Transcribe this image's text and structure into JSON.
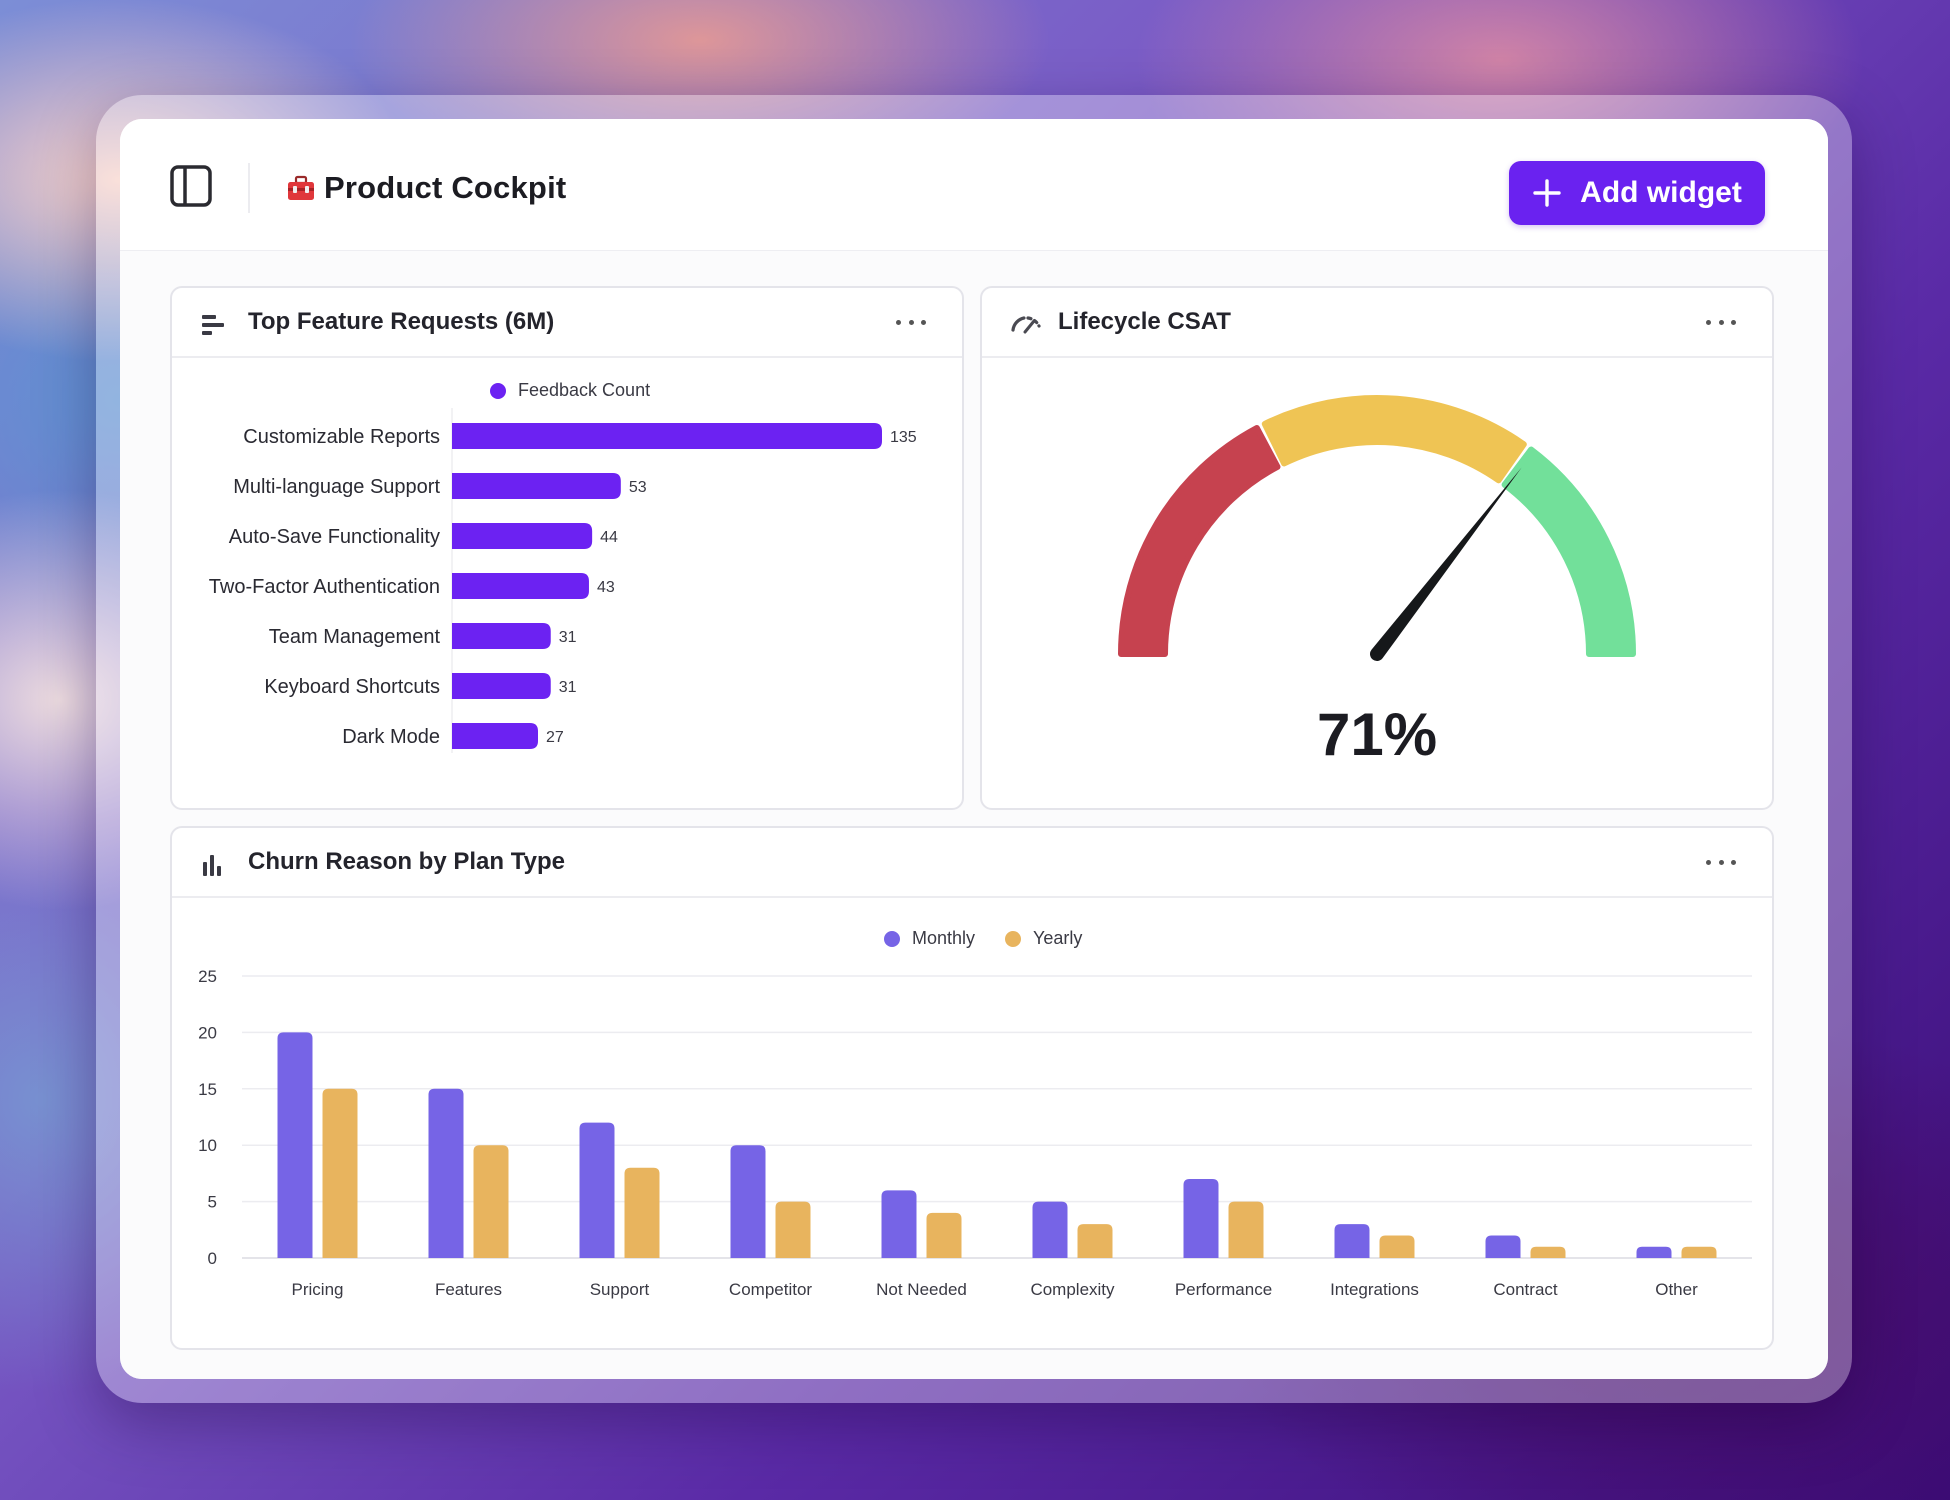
{
  "app": {
    "title": "Product Cockpit",
    "add_widget_label": "Add widget"
  },
  "colors": {
    "accent": "#6a22f0",
    "bar_purple": "#6c22f2",
    "monthly": "#7664e6",
    "yearly": "#e8b45e",
    "gauge_red": "#c6424f",
    "gauge_yellow": "#efc454",
    "gauge_green": "#72e09a"
  },
  "widgets": {
    "feature_requests": {
      "title": "Top Feature Requests (6M)",
      "icon": "horizontal-bars-icon",
      "legend": "Feedback Count"
    },
    "csat": {
      "title": "Lifecycle CSAT",
      "icon": "gauge-icon",
      "value_label": "71%"
    },
    "churn": {
      "title": "Churn Reason by Plan Type",
      "icon": "vertical-bars-icon",
      "legend_monthly": "Monthly",
      "legend_yearly": "Yearly"
    }
  },
  "chart_data": [
    {
      "type": "bar",
      "orientation": "horizontal",
      "title": "Top Feature Requests (6M)",
      "legend": [
        "Feedback Count"
      ],
      "categories": [
        "Customizable Reports",
        "Multi-language Support",
        "Auto-Save Functionality",
        "Two-Factor Authentication",
        "Team Management",
        "Keyboard Shortcuts",
        "Dark Mode"
      ],
      "series": [
        {
          "name": "Feedback Count",
          "values": [
            135,
            53,
            44,
            43,
            31,
            31,
            27
          ]
        }
      ],
      "data_labels": true,
      "grid": false
    },
    {
      "type": "gauge",
      "title": "Lifecycle CSAT",
      "value": 71,
      "range": [
        0,
        100
      ],
      "bands": [
        {
          "color": "red",
          "from": 0,
          "to": 35
        },
        {
          "color": "yellow",
          "from": 35,
          "to": 70
        },
        {
          "color": "green",
          "from": 70,
          "to": 100
        }
      ]
    },
    {
      "type": "bar",
      "title": "Churn Reason by Plan Type",
      "categories": [
        "Pricing",
        "Features",
        "Support",
        "Competitor",
        "Not Needed",
        "Complexity",
        "Performance",
        "Integrations",
        "Contract",
        "Other"
      ],
      "series": [
        {
          "name": "Monthly",
          "values": [
            20,
            15,
            12,
            10,
            6,
            5,
            7,
            3,
            2,
            1
          ]
        },
        {
          "name": "Yearly",
          "values": [
            15,
            10,
            8,
            5,
            4,
            3,
            5,
            2,
            1,
            1
          ]
        }
      ],
      "yticks": [
        "0",
        "5",
        "10",
        "15",
        "20",
        "25"
      ],
      "ylim": [
        0,
        25
      ],
      "grid": true,
      "legend": "top-center"
    }
  ]
}
